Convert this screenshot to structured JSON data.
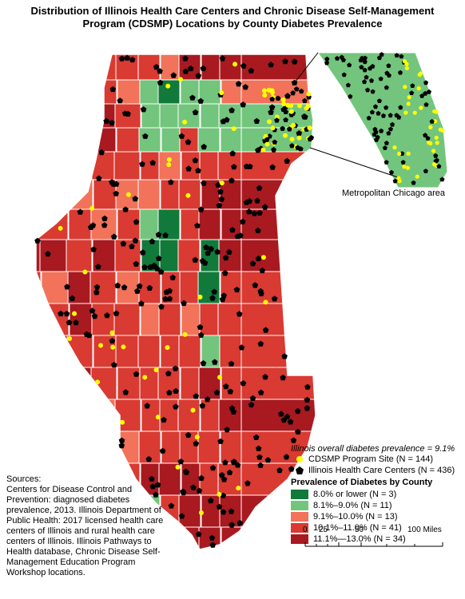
{
  "title_line1": "Distribution of Illinois Health Care Centers and Chronic Disease Self-Management",
  "title_line2": "Program (CDSMP) Locations by County Diabetes Prevalence",
  "inset_label": "Metropolitan Chicago area",
  "overall_prevalence": "Illinois overall diabetes prevalence = 9.1%",
  "legend": {
    "cdsmp": "CDSMP Program Site (N = 144)",
    "centers": "Illinois Health Care Centers (N = 436)",
    "title": "Prevalence of Diabetes by County",
    "classes": [
      {
        "label": "8.0% or lower (N = 3)",
        "color": "#117a3a"
      },
      {
        "label": "8.1%–9.0% (N = 11)",
        "color": "#73c57d"
      },
      {
        "label": "9.1%–10.0% (N = 13)",
        "color": "#f2725a"
      },
      {
        "label": "10.1%–11.0% (N = 41)",
        "color": "#d93a32"
      },
      {
        "label": "11.1%—13.0% (N = 34)",
        "color": "#a81a20"
      }
    ]
  },
  "sources": {
    "heading": "Sources:",
    "text": "Centers for Disease Control and Prevention: diagnosed diabetes prevalence, 2013. Illinois Department of Public Health: 2017 licensed health care centers of Illinois and rural health care centers of Illinois. Illinois Pathways to Health database, Chronic Disease Self-Management Education Program Workshop locations."
  },
  "scale": {
    "ticks": [
      "0",
      "25",
      "50",
      "100 Miles"
    ]
  },
  "colors": {
    "site": "#ffff00",
    "center": "#000000",
    "border": "#ffffff"
  }
}
